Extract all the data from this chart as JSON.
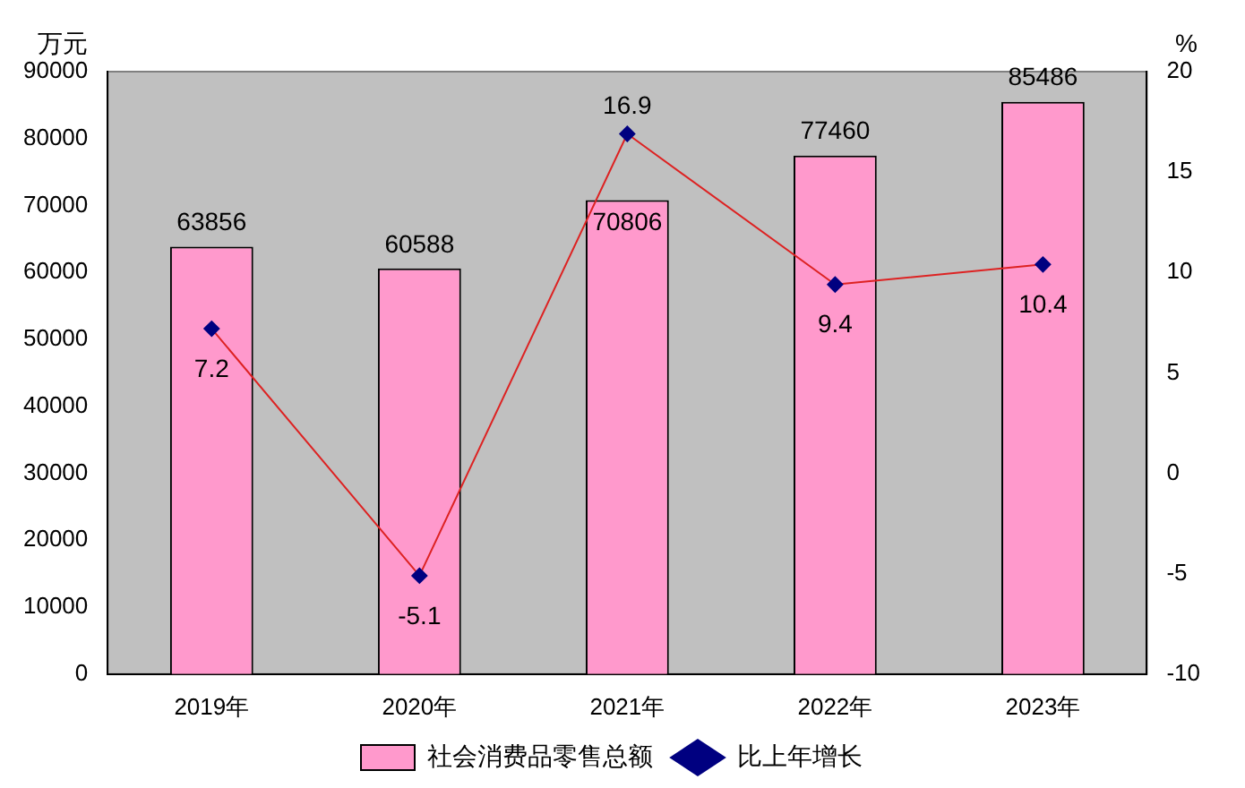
{
  "chart_data": {
    "type": "bar",
    "categories": [
      "2019年",
      "2020年",
      "2021年",
      "2022年",
      "2023年"
    ],
    "series": [
      {
        "name": "社会消费品零售总额",
        "color": "#ff99cc",
        "values": [
          63856,
          60588,
          70806,
          77460,
          85486
        ]
      },
      {
        "name": "比上年增长",
        "type": "line",
        "axis": "y2",
        "color": "#dd2222",
        "values": [
          7.2,
          -5.1,
          16.9,
          9.4,
          10.4
        ]
      }
    ],
    "ylabel": "万元",
    "y2label": "%",
    "ylim": [
      0,
      90000
    ],
    "yticks": [
      0,
      10000,
      20000,
      30000,
      40000,
      50000,
      60000,
      70000,
      80000,
      90000
    ],
    "y2lim": [
      -10,
      20
    ],
    "y2ticks": [
      -10,
      -5,
      0,
      5,
      10,
      15,
      20
    ],
    "data_labels": true,
    "legend": "bottom",
    "grid": false,
    "marker": "diamond"
  }
}
